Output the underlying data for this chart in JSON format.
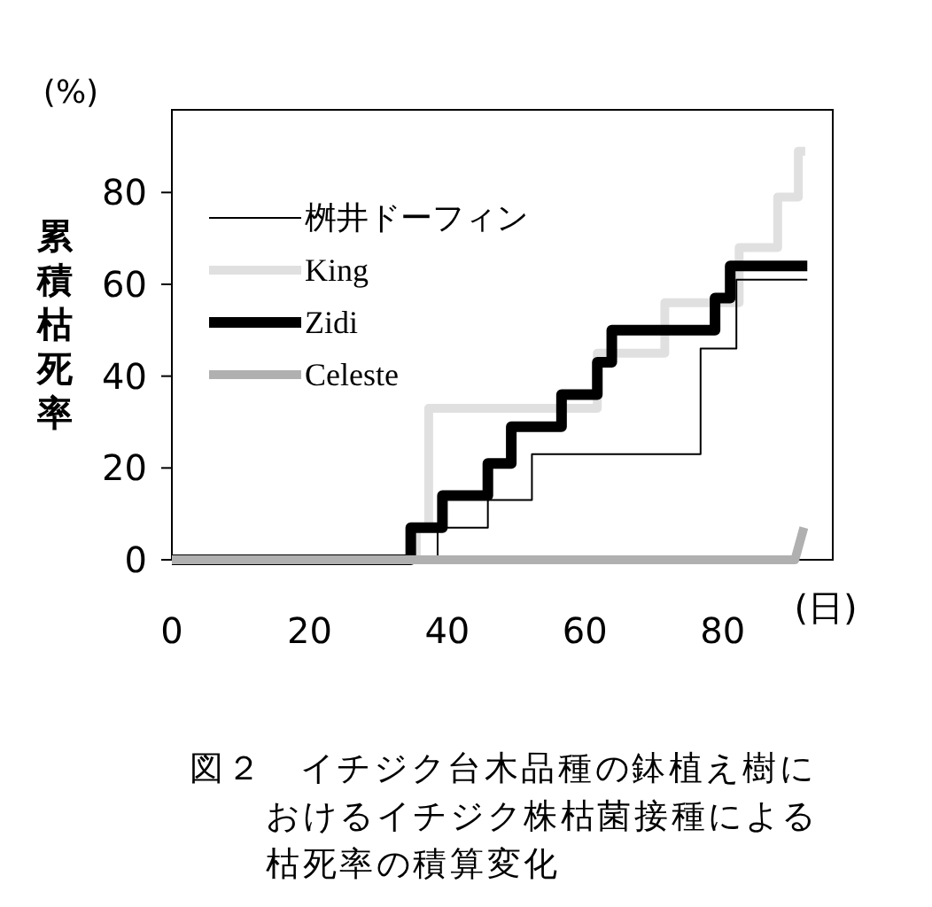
{
  "chart_data": {
    "type": "step",
    "ylabel": "累積枯死率",
    "xlabel": "(日)",
    "annotations": [
      "(%)",
      "図２　イチジク台木品種の鉢植え樹におけるイチジク株枯菌接種による枯死率の積算変化"
    ],
    "xlim": [
      0,
      96
    ],
    "ylim": [
      0,
      98
    ],
    "xticks": [
      0,
      20,
      40,
      60,
      80
    ],
    "yticks": [
      0,
      20,
      40,
      60,
      80
    ],
    "grid": false,
    "legend": "top left",
    "series": [
      {
        "name": "桝井ドーフィン",
        "color": "#000000",
        "x": [
          0,
          38.6,
          45.9,
          52.3,
          76.8,
          82,
          92.3
        ],
        "values": [
          0,
          7,
          13,
          23,
          46,
          61,
          61
        ]
      },
      {
        "name": "King",
        "color": "#e0e0e0",
        "x": [
          0,
          35.5,
          37.3,
          61.8,
          71.6,
          82.4,
          88,
          91,
          92
        ],
        "values": [
          0,
          7,
          33,
          45,
          56,
          68,
          79,
          89,
          89
        ]
      },
      {
        "name": "Zidi",
        "color": "#000000",
        "x": [
          0,
          34.7,
          39.3,
          45.9,
          49.3,
          56.6,
          61.8,
          63.9,
          78.9,
          81.1,
          92.3
        ],
        "values": [
          0,
          7,
          14,
          21,
          29,
          36,
          43,
          50,
          57,
          64,
          64
        ]
      },
      {
        "name": "Celeste",
        "type": "line",
        "color": "#b0b0b0",
        "x": [
          0,
          90.5,
          91.8
        ],
        "values": [
          0,
          0,
          7
        ]
      }
    ]
  }
}
